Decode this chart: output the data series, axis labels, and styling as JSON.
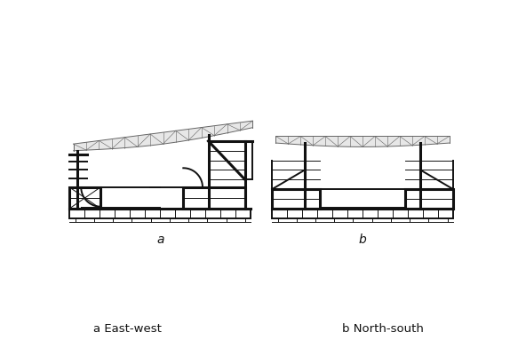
{
  "background_color": "#ffffff",
  "line_color": "#111111",
  "truss_color": "#666666",
  "label_a": "a",
  "label_b": "b",
  "caption_a": "a East-west",
  "caption_b": "b North-south",
  "fig_width": 5.74,
  "fig_height": 3.92
}
